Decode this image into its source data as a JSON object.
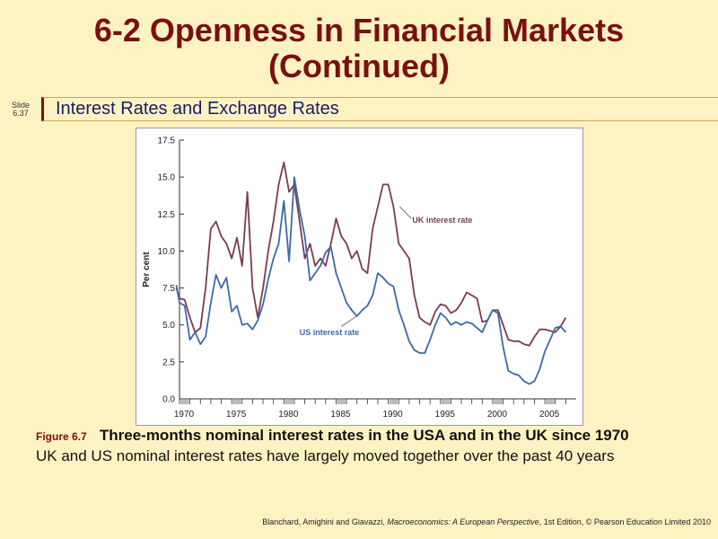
{
  "slide": {
    "title_line1": "6-2  Openness in Financial Markets",
    "title_line2": "(Continued)",
    "slide_label": "Slide",
    "slide_number": "6.37",
    "subtitle": "Interest Rates and Exchange Rates"
  },
  "caption": {
    "figure_label": "Figure 6.7",
    "figure_title": "Three-months nominal interest rates in the USA and in the UK since 1970",
    "description": "UK and US nominal interest rates have largely moved together over the past 40 years"
  },
  "footer": {
    "authors": "Blanchard, Amighini and Giavazzi, ",
    "book": "Macroeconomics: A European Perspective",
    "edition": ", 1st Edition, © Pearson Education Limited 2010"
  },
  "colors": {
    "title": "#7a1010",
    "uk_series": "#7b3b52",
    "us_series": "#3c6aa6",
    "background": "#fdf3c2"
  },
  "chart_data": {
    "type": "line",
    "ylabel": "Per cent",
    "xlabel": "",
    "xlim": [
      1970,
      2008
    ],
    "ylim": [
      0,
      17.5
    ],
    "yticks": [
      0.0,
      2.5,
      5.0,
      7.5,
      10.0,
      12.5,
      15.0,
      17.5
    ],
    "xticks": [
      1970,
      1975,
      1980,
      1985,
      1990,
      1995,
      2000,
      2005
    ],
    "series": [
      {
        "name": "UK interest rate",
        "x": [
          1969.7,
          1970,
          1970.5,
          1971,
          1971.5,
          1972,
          1972.5,
          1973,
          1973.5,
          1974,
          1974.5,
          1975,
          1975.5,
          1976,
          1976.5,
          1977,
          1977.5,
          1978,
          1978.5,
          1979,
          1979.5,
          1980,
          1980.5,
          1981,
          1981.5,
          1982,
          1982.5,
          1983,
          1983.5,
          1984,
          1984.5,
          1985,
          1985.5,
          1986,
          1986.5,
          1987,
          1987.5,
          1988,
          1988.5,
          1989,
          1989.5,
          1990,
          1990.5,
          1991,
          1991.5,
          1992,
          1992.5,
          1993,
          1993.5,
          1994,
          1994.5,
          1995,
          1995.5,
          1996,
          1996.5,
          1997,
          1997.5,
          1998,
          1998.5,
          1999,
          1999.5,
          2000,
          2000.5,
          2001,
          2001.5,
          2002,
          2002.5,
          2003,
          2003.5,
          2004,
          2004.5,
          2005,
          2005.5,
          2006,
          2006.5,
          2007
        ],
        "values": [
          7.5,
          6.8,
          6.7,
          5.5,
          4.5,
          4.8,
          7.5,
          11.5,
          12.0,
          11.0,
          10.5,
          9.5,
          10.9,
          9.0,
          14.0,
          7.5,
          5.5,
          7.5,
          10.0,
          12.0,
          14.5,
          16.0,
          14.0,
          14.5,
          12.0,
          9.5,
          10.5,
          9.0,
          9.5,
          9.0,
          10.5,
          12.2,
          11.0,
          10.5,
          9.5,
          10.0,
          8.8,
          8.5,
          11.5,
          13.0,
          14.5,
          14.5,
          13.0,
          10.5,
          10.0,
          9.5,
          7.0,
          5.5,
          5.2,
          5.0,
          5.9,
          6.4,
          6.3,
          5.8,
          6.0,
          6.5,
          7.2,
          7.0,
          6.8,
          5.2,
          5.3,
          6.0,
          6.0,
          5.0,
          4.0,
          3.9,
          3.9,
          3.7,
          3.6,
          4.2,
          4.7,
          4.7,
          4.6,
          4.5,
          4.9,
          5.5
        ]
      },
      {
        "name": "US interest rate",
        "x": [
          1969.7,
          1970,
          1970.5,
          1971,
          1971.5,
          1972,
          1972.5,
          1973,
          1973.5,
          1974,
          1974.5,
          1975,
          1975.5,
          1976,
          1976.5,
          1977,
          1977.5,
          1978,
          1978.5,
          1979,
          1979.5,
          1980,
          1980.5,
          1981,
          1981.5,
          1982,
          1982.5,
          1983,
          1983.5,
          1984,
          1984.5,
          1985,
          1985.5,
          1986,
          1986.5,
          1987,
          1987.5,
          1988,
          1988.5,
          1989,
          1989.5,
          1990,
          1990.5,
          1991,
          1991.5,
          1992,
          1992.5,
          1993,
          1993.5,
          1994,
          1994.5,
          1995,
          1995.5,
          1996,
          1996.5,
          1997,
          1997.5,
          1998,
          1998.5,
          1999,
          1999.5,
          2000,
          2000.5,
          2001,
          2001.5,
          2002,
          2002.5,
          2003,
          2003.5,
          2004,
          2004.5,
          2005,
          2005.5,
          2006,
          2006.5,
          2007
        ],
        "values": [
          7.7,
          6.5,
          6.3,
          4.0,
          4.5,
          3.7,
          4.2,
          6.5,
          8.4,
          7.5,
          8.2,
          5.9,
          6.3,
          5.0,
          5.1,
          4.7,
          5.3,
          6.4,
          8.1,
          9.5,
          10.5,
          13.4,
          9.3,
          15.0,
          12.8,
          11.0,
          8.0,
          8.5,
          9.0,
          9.9,
          10.3,
          8.5,
          7.5,
          6.5,
          6.0,
          5.6,
          6.0,
          6.3,
          7.0,
          8.5,
          8.2,
          7.8,
          7.6,
          6.0,
          5.0,
          3.9,
          3.3,
          3.1,
          3.1,
          4.0,
          5.0,
          5.8,
          5.5,
          5.0,
          5.2,
          5.0,
          5.2,
          5.1,
          4.8,
          4.5,
          5.3,
          6.0,
          5.8,
          3.5,
          1.9,
          1.7,
          1.6,
          1.2,
          1.0,
          1.2,
          2.0,
          3.2,
          4.0,
          4.8,
          4.9,
          4.5
        ]
      }
    ],
    "annotations": [
      {
        "text": "UK interest rate",
        "series": "UK interest rate"
      },
      {
        "text": "US interest rate",
        "series": "US interest rate"
      }
    ],
    "grid": false,
    "legend": "inline-annotations"
  }
}
